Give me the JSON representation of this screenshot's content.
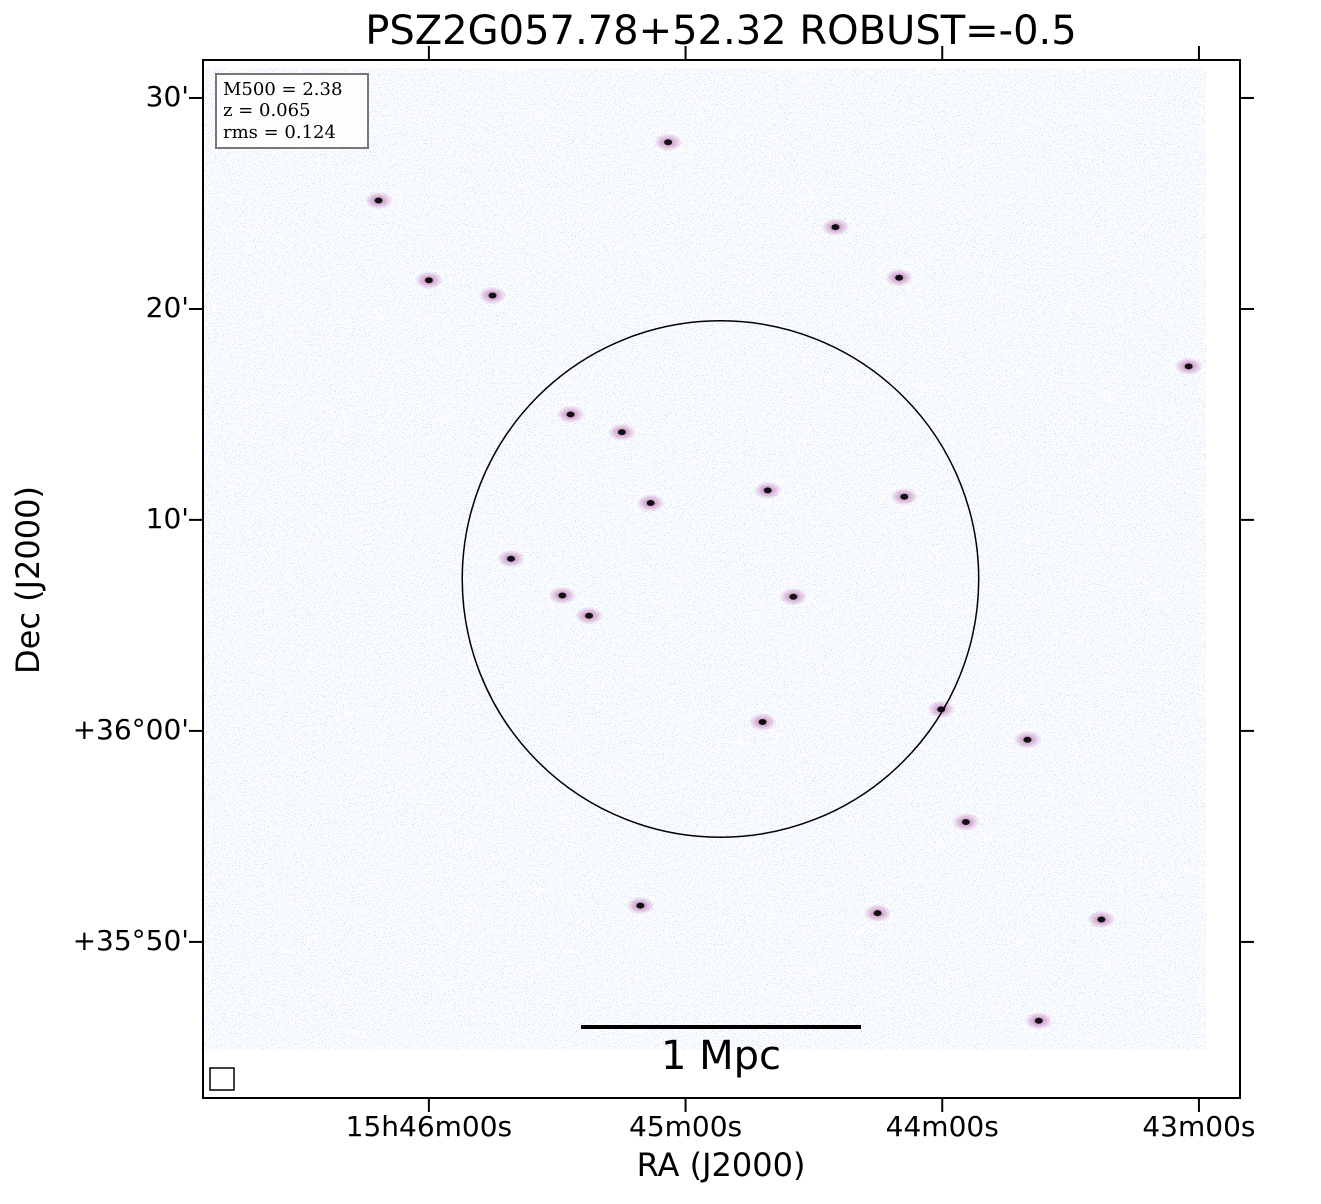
{
  "chart_data": {
    "type": "image",
    "title": "PSZ2G057.78+52.32 ROBUST=-0.5",
    "xlabel": "RA (J2000)",
    "ylabel": "Dec (J2000)",
    "xlim": [
      236.72,
      235.71
    ],
    "ylim": [
      35.71,
      36.53
    ],
    "xticks": [
      {
        "value": 236.5,
        "label": "15h46m00s"
      },
      {
        "value": 236.25,
        "label": "45m00s"
      },
      {
        "value": 236.0,
        "label": "44m00s"
      },
      {
        "value": 235.75,
        "label": "43m00s"
      }
    ],
    "yticks": [
      {
        "value": 35.8333,
        "label": "+35°50'"
      },
      {
        "value": 36.0,
        "label": "+36°00'"
      },
      {
        "value": 36.1667,
        "label": "10'"
      },
      {
        "value": 36.3333,
        "label": "20'"
      },
      {
        "value": 36.5,
        "label": "30'"
      }
    ],
    "annotations": [
      "M500 = 2.38",
      "z = 0.065",
      "rms = 0.124"
    ],
    "scalebar_label": "1 Mpc",
    "circle": {
      "ra": 236.216,
      "dec": 36.12,
      "radius": 0.204,
      "color": "#000000"
    },
    "sources": {
      "ra": [
        236.267,
        236.549,
        236.438,
        236.042,
        235.76,
        236.17,
        236.037,
        236.284,
        236.145,
        236.37,
        236.344,
        236.312,
        236.362,
        236.42,
        236.001,
        235.917,
        235.977,
        236.175,
        235.906,
        236.063,
        236.294,
        236.5,
        236.104,
        235.845
      ],
      "dec": [
        36.465,
        36.419,
        36.344,
        36.358,
        36.288,
        36.19,
        36.185,
        36.18,
        36.106,
        36.107,
        36.091,
        36.236,
        36.25,
        36.136,
        36.017,
        35.993,
        35.928,
        36.007,
        35.771,
        35.856,
        35.862,
        36.356,
        36.398,
        35.851
      ],
      "color": "#111111"
    }
  }
}
